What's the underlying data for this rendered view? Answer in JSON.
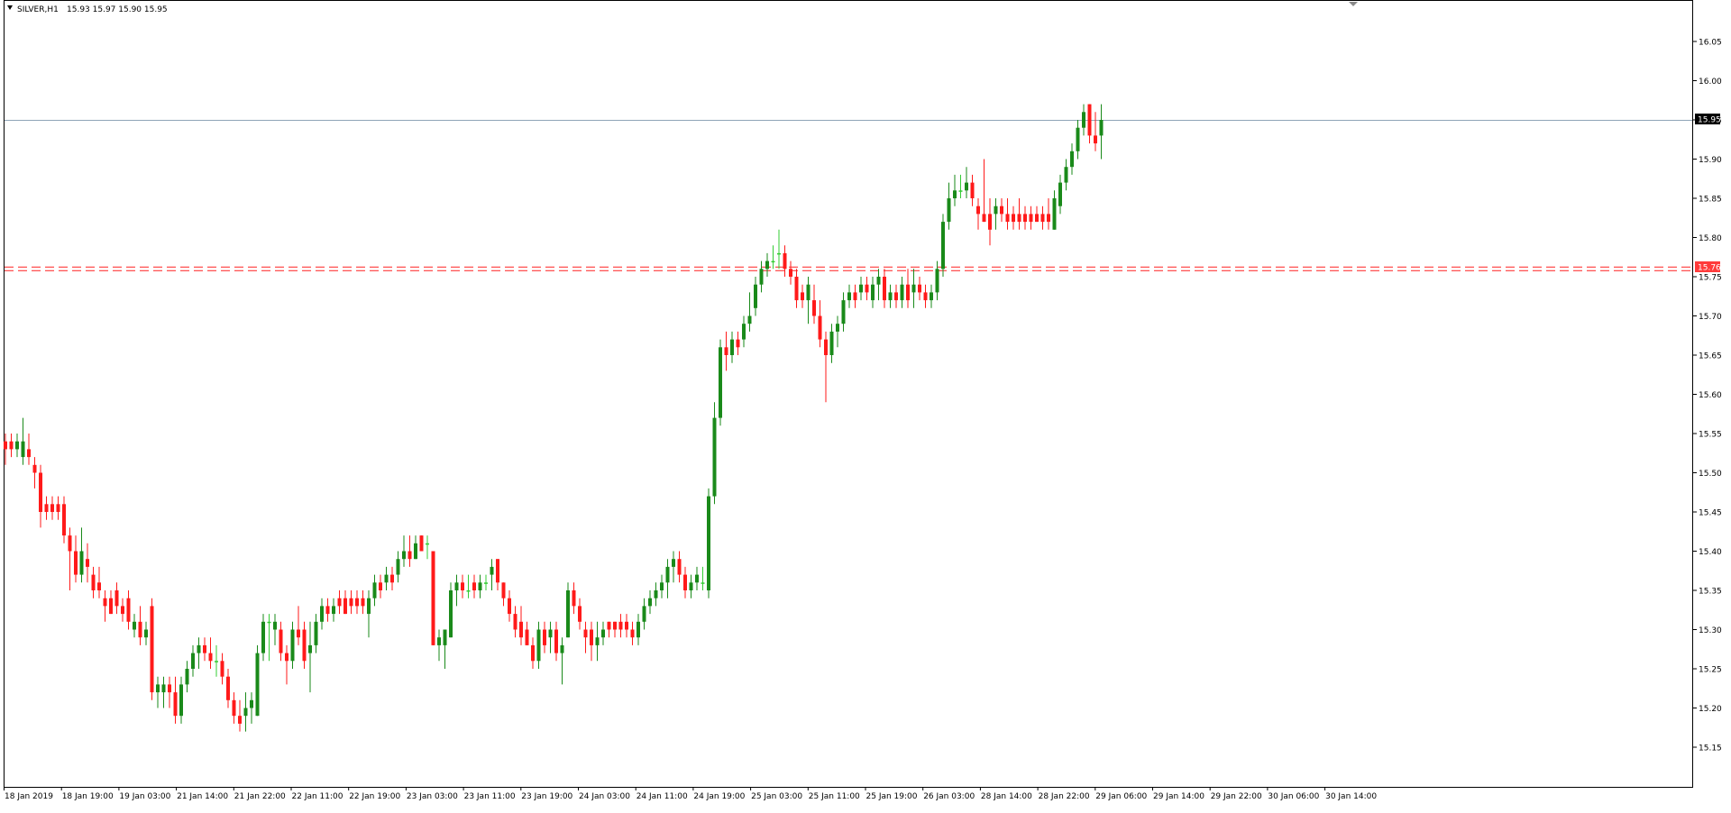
{
  "header": {
    "symbol_label": "SILVER,H1",
    "ohlc_text": "15.93 15.97 15.90 15.95"
  },
  "price_axis": {
    "ticks": [
      "16.05",
      "16.00",
      "15.95",
      "15.90",
      "15.85",
      "15.80",
      "15.75",
      "15.70",
      "15.65",
      "15.60",
      "15.55",
      "15.50",
      "15.45",
      "15.40",
      "15.35",
      "15.30",
      "15.25",
      "15.20",
      "15.15"
    ],
    "bid_label": "15.95",
    "level_label": "15.76"
  },
  "time_axis": {
    "labels": [
      "18 Jan 2019",
      "18 Jan 19:00",
      "19 Jan 03:00",
      "21 Jan 14:00",
      "21 Jan 22:00",
      "22 Jan 11:00",
      "22 Jan 19:00",
      "23 Jan 03:00",
      "23 Jan 11:00",
      "23 Jan 19:00",
      "24 Jan 03:00",
      "24 Jan 11:00",
      "24 Jan 19:00",
      "25 Jan 03:00",
      "25 Jan 11:00",
      "25 Jan 19:00",
      "26 Jan 03:00",
      "28 Jan 14:00",
      "28 Jan 22:00",
      "29 Jan 06:00",
      "29 Jan 14:00",
      "29 Jan 22:00",
      "30 Jan 06:00",
      "30 Jan 14:00"
    ]
  },
  "colors": {
    "bull": "#1a8a1a",
    "bear": "#ff1a1a",
    "doji": "#33cc33",
    "bid_line": "#8fa5b8",
    "level_line": "#ff3b3b",
    "axis": "#000000"
  },
  "chart_data": {
    "type": "candlestick",
    "symbol": "SILVER",
    "timeframe": "H1",
    "ylim": [
      15.11,
      16.1
    ],
    "current_price": 15.95,
    "horizontal_levels": [
      15.76
    ],
    "ohlc": [
      [
        15.54,
        15.55,
        15.51,
        15.53
      ],
      [
        15.54,
        15.55,
        15.52,
        15.53
      ],
      [
        15.53,
        15.55,
        15.52,
        15.54
      ],
      [
        15.52,
        15.57,
        15.51,
        15.54
      ],
      [
        15.53,
        15.55,
        15.51,
        15.52
      ],
      [
        15.51,
        15.52,
        15.48,
        15.5
      ],
      [
        15.5,
        15.51,
        15.43,
        15.45
      ],
      [
        15.46,
        15.47,
        15.44,
        15.45
      ],
      [
        15.46,
        15.47,
        15.44,
        15.45
      ],
      [
        15.46,
        15.47,
        15.44,
        15.45
      ],
      [
        15.46,
        15.47,
        15.41,
        15.42
      ],
      [
        15.42,
        15.43,
        15.35,
        15.4
      ],
      [
        15.4,
        15.42,
        15.36,
        15.37
      ],
      [
        15.37,
        15.43,
        15.36,
        15.4
      ],
      [
        15.39,
        15.41,
        15.36,
        15.38
      ],
      [
        15.37,
        15.38,
        15.34,
        15.35
      ],
      [
        15.36,
        15.38,
        15.34,
        15.35
      ],
      [
        15.34,
        15.35,
        15.31,
        15.33
      ],
      [
        15.34,
        15.35,
        15.32,
        15.32
      ],
      [
        15.35,
        15.36,
        15.32,
        15.33
      ],
      [
        15.33,
        15.34,
        15.31,
        15.32
      ],
      [
        15.34,
        15.35,
        15.3,
        15.31
      ],
      [
        15.3,
        15.32,
        15.29,
        15.31
      ],
      [
        15.31,
        15.33,
        15.28,
        15.29
      ],
      [
        15.29,
        15.31,
        15.28,
        15.3
      ],
      [
        15.33,
        15.34,
        15.21,
        15.22
      ],
      [
        15.22,
        15.24,
        15.2,
        15.23
      ],
      [
        15.22,
        15.24,
        15.2,
        15.23
      ],
      [
        15.23,
        15.24,
        15.2,
        15.22
      ],
      [
        15.22,
        15.24,
        15.18,
        15.19
      ],
      [
        15.19,
        15.24,
        15.18,
        15.23
      ],
      [
        15.23,
        15.26,
        15.22,
        15.25
      ],
      [
        15.25,
        15.28,
        15.24,
        15.27
      ],
      [
        15.27,
        15.29,
        15.25,
        15.28
      ],
      [
        15.28,
        15.29,
        15.26,
        15.27
      ],
      [
        15.27,
        15.29,
        15.25,
        15.26
      ],
      [
        15.26,
        15.28,
        15.24,
        15.26
      ],
      [
        15.26,
        15.27,
        15.23,
        15.24
      ],
      [
        15.24,
        15.25,
        15.2,
        15.21
      ],
      [
        15.21,
        15.22,
        15.18,
        15.19
      ],
      [
        15.19,
        15.21,
        15.17,
        15.18
      ],
      [
        15.19,
        15.22,
        15.17,
        15.2
      ],
      [
        15.2,
        15.22,
        15.18,
        15.21
      ],
      [
        15.19,
        15.28,
        15.19,
        15.27
      ],
      [
        15.27,
        15.32,
        15.26,
        15.31
      ],
      [
        15.31,
        15.32,
        15.26,
        15.31
      ],
      [
        15.3,
        15.32,
        15.28,
        15.31
      ],
      [
        15.3,
        15.31,
        15.26,
        15.27
      ],
      [
        15.27,
        15.28,
        15.23,
        15.26
      ],
      [
        15.26,
        15.31,
        15.25,
        15.3
      ],
      [
        15.3,
        15.33,
        15.28,
        15.29
      ],
      [
        15.3,
        15.31,
        15.25,
        15.26
      ],
      [
        15.27,
        15.31,
        15.22,
        15.28
      ],
      [
        15.28,
        15.32,
        15.27,
        15.31
      ],
      [
        15.31,
        15.34,
        15.3,
        15.33
      ],
      [
        15.33,
        15.34,
        15.31,
        15.32
      ],
      [
        15.32,
        15.34,
        15.31,
        15.33
      ],
      [
        15.34,
        15.35,
        15.32,
        15.33
      ],
      [
        15.34,
        15.35,
        15.32,
        15.32
      ],
      [
        15.34,
        15.35,
        15.32,
        15.33
      ],
      [
        15.34,
        15.35,
        15.32,
        15.33
      ],
      [
        15.34,
        15.35,
        15.32,
        15.33
      ],
      [
        15.32,
        15.35,
        15.29,
        15.34
      ],
      [
        15.34,
        15.37,
        15.33,
        15.36
      ],
      [
        15.36,
        15.37,
        15.34,
        15.35
      ],
      [
        15.36,
        15.38,
        15.35,
        15.37
      ],
      [
        15.37,
        15.38,
        15.35,
        15.36
      ],
      [
        15.37,
        15.4,
        15.36,
        15.39
      ],
      [
        15.39,
        15.42,
        15.38,
        15.4
      ],
      [
        15.4,
        15.42,
        15.38,
        15.39
      ],
      [
        15.39,
        15.42,
        15.39,
        15.41
      ],
      [
        15.42,
        15.42,
        15.4,
        15.4
      ],
      [
        15.41,
        15.42,
        15.39,
        15.41
      ],
      [
        15.4,
        15.4,
        15.28,
        15.28
      ],
      [
        15.28,
        15.3,
        15.26,
        15.29
      ],
      [
        15.28,
        15.3,
        15.25,
        15.3
      ],
      [
        15.29,
        15.36,
        15.29,
        15.35
      ],
      [
        15.35,
        15.37,
        15.33,
        15.36
      ],
      [
        15.36,
        15.37,
        15.34,
        15.35
      ],
      [
        15.35,
        15.37,
        15.34,
        15.35
      ],
      [
        15.36,
        15.37,
        15.34,
        15.35
      ],
      [
        15.35,
        15.37,
        15.34,
        15.36
      ],
      [
        15.36,
        15.37,
        15.35,
        15.36
      ],
      [
        15.37,
        15.39,
        15.35,
        15.38
      ],
      [
        15.39,
        15.39,
        15.35,
        15.36
      ],
      [
        15.36,
        15.36,
        15.33,
        15.34
      ],
      [
        15.34,
        15.35,
        15.31,
        15.32
      ],
      [
        15.32,
        15.33,
        15.29,
        15.3
      ],
      [
        15.31,
        15.33,
        15.28,
        15.29
      ],
      [
        15.3,
        15.31,
        15.28,
        15.28
      ],
      [
        15.28,
        15.29,
        15.25,
        15.26
      ],
      [
        15.26,
        15.31,
        15.25,
        15.3
      ],
      [
        15.3,
        15.31,
        15.27,
        15.28
      ],
      [
        15.29,
        15.31,
        15.27,
        15.3
      ],
      [
        15.3,
        15.31,
        15.26,
        15.27
      ],
      [
        15.27,
        15.29,
        15.23,
        15.28
      ],
      [
        15.29,
        15.36,
        15.29,
        15.35
      ],
      [
        15.35,
        15.36,
        15.32,
        15.33
      ],
      [
        15.33,
        15.34,
        15.3,
        15.31
      ],
      [
        15.3,
        15.31,
        15.27,
        15.29
      ],
      [
        15.3,
        15.31,
        15.26,
        15.28
      ],
      [
        15.28,
        15.31,
        15.26,
        15.29
      ],
      [
        15.29,
        15.31,
        15.28,
        15.3
      ],
      [
        15.31,
        15.31,
        15.29,
        15.3
      ],
      [
        15.31,
        15.31,
        15.29,
        15.3
      ],
      [
        15.31,
        15.32,
        15.29,
        15.3
      ],
      [
        15.31,
        15.32,
        15.29,
        15.3
      ],
      [
        15.3,
        15.31,
        15.28,
        15.29
      ],
      [
        15.29,
        15.32,
        15.28,
        15.31
      ],
      [
        15.31,
        15.34,
        15.3,
        15.33
      ],
      [
        15.33,
        15.35,
        15.32,
        15.34
      ],
      [
        15.34,
        15.36,
        15.33,
        15.35
      ],
      [
        15.35,
        15.37,
        15.34,
        15.36
      ],
      [
        15.36,
        15.39,
        15.34,
        15.38
      ],
      [
        15.38,
        15.4,
        15.36,
        15.39
      ],
      [
        15.39,
        15.4,
        15.36,
        15.37
      ],
      [
        15.37,
        15.38,
        15.34,
        15.35
      ],
      [
        15.35,
        15.37,
        15.34,
        15.36
      ],
      [
        15.36,
        15.38,
        15.35,
        15.37
      ],
      [
        15.36,
        15.38,
        15.35,
        15.36
      ],
      [
        15.35,
        15.48,
        15.34,
        15.47
      ],
      [
        15.47,
        15.59,
        15.46,
        15.57
      ],
      [
        15.57,
        15.67,
        15.56,
        15.66
      ],
      [
        15.66,
        15.68,
        15.63,
        15.65
      ],
      [
        15.65,
        15.68,
        15.64,
        15.67
      ],
      [
        15.67,
        15.68,
        15.65,
        15.66
      ],
      [
        15.67,
        15.7,
        15.66,
        15.69
      ],
      [
        15.69,
        15.73,
        15.68,
        15.7
      ],
      [
        15.71,
        15.75,
        15.7,
        15.74
      ],
      [
        15.74,
        15.77,
        15.73,
        15.76
      ],
      [
        15.76,
        15.78,
        15.75,
        15.77
      ],
      [
        15.77,
        15.79,
        15.76,
        15.77
      ],
      [
        15.78,
        15.81,
        15.76,
        15.78
      ],
      [
        15.78,
        15.79,
        15.75,
        15.76
      ],
      [
        15.76,
        15.77,
        15.74,
        15.75
      ],
      [
        15.75,
        15.76,
        15.71,
        15.72
      ],
      [
        15.73,
        15.74,
        15.71,
        15.72
      ],
      [
        15.72,
        15.75,
        15.69,
        15.74
      ],
      [
        15.72,
        15.74,
        15.69,
        15.7
      ],
      [
        15.7,
        15.72,
        15.66,
        15.67
      ],
      [
        15.67,
        15.68,
        15.59,
        15.65
      ],
      [
        15.65,
        15.69,
        15.64,
        15.68
      ],
      [
        15.68,
        15.7,
        15.66,
        15.69
      ],
      [
        15.69,
        15.73,
        15.68,
        15.72
      ],
      [
        15.72,
        15.74,
        15.71,
        15.73
      ],
      [
        15.73,
        15.74,
        15.71,
        15.72
      ],
      [
        15.73,
        15.75,
        15.72,
        15.74
      ],
      [
        15.74,
        15.75,
        15.72,
        15.73
      ],
      [
        15.72,
        15.75,
        15.71,
        15.74
      ],
      [
        15.74,
        15.76,
        15.72,
        15.75
      ],
      [
        15.75,
        15.76,
        15.71,
        15.72
      ],
      [
        15.72,
        15.74,
        15.71,
        15.73
      ],
      [
        15.73,
        15.74,
        15.71,
        15.72
      ],
      [
        15.72,
        15.75,
        15.71,
        15.74
      ],
      [
        15.74,
        15.76,
        15.71,
        15.72
      ],
      [
        15.73,
        15.76,
        15.71,
        15.74
      ],
      [
        15.74,
        15.75,
        15.72,
        15.73
      ],
      [
        15.73,
        15.74,
        15.71,
        15.72
      ],
      [
        15.72,
        15.74,
        15.71,
        15.73
      ],
      [
        15.73,
        15.77,
        15.72,
        15.76
      ],
      [
        15.76,
        15.83,
        15.75,
        15.82
      ],
      [
        15.82,
        15.87,
        15.81,
        15.85
      ],
      [
        15.85,
        15.88,
        15.84,
        15.86
      ],
      [
        15.86,
        15.88,
        15.85,
        15.86
      ],
      [
        15.86,
        15.89,
        15.85,
        15.87
      ],
      [
        15.87,
        15.88,
        15.84,
        15.85
      ],
      [
        15.84,
        15.85,
        15.81,
        15.83
      ],
      [
        15.83,
        15.9,
        15.82,
        15.82
      ],
      [
        15.83,
        15.85,
        15.79,
        15.81
      ],
      [
        15.83,
        15.85,
        15.81,
        15.84
      ],
      [
        15.84,
        15.85,
        15.82,
        15.83
      ],
      [
        15.83,
        15.85,
        15.81,
        15.82
      ],
      [
        15.83,
        15.84,
        15.81,
        15.82
      ],
      [
        15.83,
        15.85,
        15.81,
        15.82
      ],
      [
        15.83,
        15.84,
        15.81,
        15.82
      ],
      [
        15.83,
        15.84,
        15.81,
        15.82
      ],
      [
        15.83,
        15.84,
        15.82,
        15.82
      ],
      [
        15.83,
        15.84,
        15.81,
        15.82
      ],
      [
        15.83,
        15.85,
        15.81,
        15.82
      ],
      [
        15.81,
        15.86,
        15.81,
        15.85
      ],
      [
        15.84,
        15.88,
        15.83,
        15.87
      ],
      [
        15.87,
        15.9,
        15.86,
        15.89
      ],
      [
        15.89,
        15.92,
        15.88,
        15.91
      ],
      [
        15.91,
        15.95,
        15.9,
        15.94
      ],
      [
        15.94,
        15.97,
        15.93,
        15.96
      ],
      [
        15.97,
        15.97,
        15.92,
        15.93
      ],
      [
        15.93,
        15.96,
        15.91,
        15.92
      ],
      [
        15.93,
        15.97,
        15.9,
        15.95
      ]
    ]
  }
}
